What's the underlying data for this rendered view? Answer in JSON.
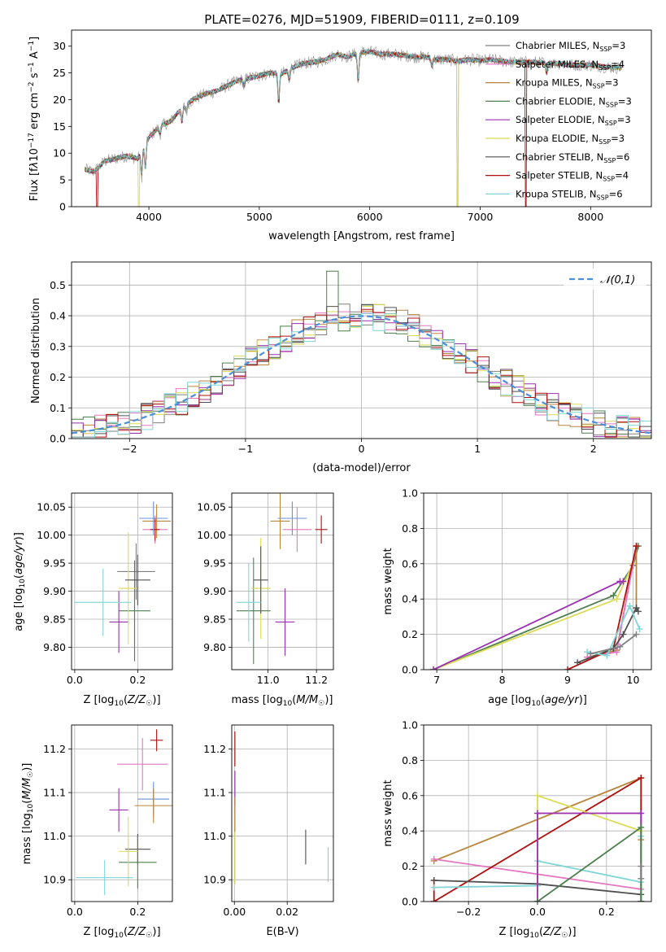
{
  "figure_title": "PLATE=0276, MJD=51909, FIBERID=0111, z=0.109",
  "series_colors": [
    "#808080",
    "#e377c2",
    "#b8863b",
    "#4f7f4f",
    "#9b30b0",
    "#dbdb55",
    "#505050",
    "#b01010",
    "#7fd6d6"
  ],
  "chart_data": [
    {
      "id": "spectrum",
      "type": "line",
      "title": "PLATE=0276, MJD=51909, FIBERID=0111, z=0.109",
      "xlabel": "wavelength [Angstrom, rest frame]",
      "ylabel": "Flux [f_λ 10^-17 erg cm^-2 s^-1 A^-1]",
      "xlim": [
        3300,
        8550
      ],
      "ylim": [
        0,
        33
      ],
      "xticks": [
        4000,
        5000,
        6000,
        7000,
        8000
      ],
      "yticks": [
        0,
        5,
        10,
        15,
        20,
        25,
        30
      ],
      "legend_position": "right",
      "series": [
        {
          "name": "Chabrier MILES, N_SSP=3",
          "color": "#808080"
        },
        {
          "name": "Salpeter MILES, N_SSP=4",
          "color": "#e377c2"
        },
        {
          "name": "Kroupa MILES, N_SSP=3",
          "color": "#b8863b"
        },
        {
          "name": "Chabrier ELODIE, N_SSP=3",
          "color": "#4f7f4f"
        },
        {
          "name": "Salpeter ELODIE, N_SSP=3",
          "color": "#9b30b0"
        },
        {
          "name": "Kroupa ELODIE, N_SSP=3",
          "color": "#dbdb55"
        },
        {
          "name": "Chabrier STELIB, N_SSP=6",
          "color": "#505050"
        },
        {
          "name": "Salpeter STELIB, N_SSP=4",
          "color": "#b01010"
        },
        {
          "name": "Kroupa STELIB, N_SSP=6",
          "color": "#7fd6d6"
        }
      ],
      "continuum": {
        "x": [
          3420,
          3500,
          3600,
          3700,
          3800,
          3900,
          4000,
          4100,
          4200,
          4300,
          4400,
          4500,
          4600,
          4700,
          4800,
          4900,
          5000,
          5100,
          5200,
          5300,
          5400,
          5500,
          5600,
          5700,
          5800,
          5900,
          6000,
          6100,
          6200,
          6300,
          6400,
          6500,
          6600,
          6700,
          6800,
          6900,
          7000,
          7100,
          7200,
          7300,
          7400,
          7500,
          7600,
          7700,
          7800,
          7900,
          8000,
          8100,
          8200,
          8280
        ],
        "y": [
          7.0,
          6.5,
          8.5,
          9.0,
          9.5,
          9.0,
          13.0,
          15.0,
          16.0,
          18.5,
          20.0,
          21.0,
          21.5,
          22.5,
          23.5,
          24.0,
          24.5,
          25.0,
          24.8,
          26.0,
          26.8,
          27.0,
          27.5,
          28.5,
          28.0,
          28.8,
          29.0,
          28.5,
          28.5,
          28.3,
          28.0,
          28.0,
          27.5,
          27.5,
          27.2,
          27.5,
          27.3,
          27.5,
          27.2,
          27.0,
          27.0,
          27.0,
          26.8,
          26.8,
          26.5,
          26.5,
          26.5,
          26.2,
          26.0,
          26.0
        ]
      },
      "absorption": [
        [
          3934,
          5
        ],
        [
          3968,
          5
        ],
        [
          4101,
          1.5
        ],
        [
          4300,
          3
        ],
        [
          4340,
          1.5
        ],
        [
          4861,
          1.5
        ],
        [
          5175,
          6
        ],
        [
          5270,
          2
        ],
        [
          5895,
          6
        ],
        [
          6563,
          1.5
        ],
        [
          7600,
          2
        ]
      ],
      "drops": [
        {
          "series": 7,
          "x_start": 3530,
          "x_end": 3532
        },
        {
          "series": 5,
          "x_start": 3905,
          "x_end": 3910
        },
        {
          "series": 5,
          "x_start": 6790,
          "x_end": 6800
        },
        {
          "series": 2,
          "x_start": 6790,
          "x_end": 6800
        },
        {
          "series": 7,
          "x_start": 7410,
          "x_end": 7418
        }
      ]
    },
    {
      "id": "residual-histogram",
      "type": "line",
      "xlabel": "(data-model)/error",
      "ylabel": "Normed distribution",
      "xlim": [
        -2.5,
        2.5
      ],
      "ylim": [
        0,
        0.575
      ],
      "xticks": [
        -2,
        -1,
        0,
        1,
        2
      ],
      "yticks": [
        0.0,
        0.1,
        0.2,
        0.3,
        0.4,
        0.5
      ],
      "legend": [
        {
          "name": "𝒩(0,1)",
          "style": "dashed",
          "color": "#4a8fd8"
        }
      ],
      "legend_position": "top-right",
      "bin_width": 0.1,
      "reference_curve": "N(0,1)",
      "notable_peak": {
        "series": "Chabrier ELODIE, N_SSP=3",
        "x": -0.25,
        "y": 0.545
      }
    },
    {
      "id": "age-vs-Z",
      "type": "scatter",
      "xlabel": "Z [log10(Z/Z☉)]",
      "ylabel": "age [log10(age/yr)]",
      "xlim": [
        -0.01,
        0.31
      ],
      "ylim": [
        9.76,
        10.075
      ],
      "xticks": [
        0.0,
        0.2
      ],
      "yticks": [
        9.8,
        9.85,
        9.9,
        9.95,
        10.0,
        10.05
      ],
      "points": [
        {
          "x": 0.195,
          "y": 9.935,
          "xerr": 0.06,
          "yerr": 0.05,
          "color": "#808080"
        },
        {
          "x": 0.255,
          "y": 10.01,
          "xerr": 0.04,
          "yerr": 0.025,
          "color": "#e377c2"
        },
        {
          "x": 0.26,
          "y": 10.025,
          "xerr": 0.045,
          "yerr": 0.03,
          "color": "#b8863b"
        },
        {
          "x": 0.19,
          "y": 9.865,
          "xerr": 0.05,
          "yerr": 0.09,
          "color": "#4f7f4f"
        },
        {
          "x": 0.14,
          "y": 9.845,
          "xerr": 0.03,
          "yerr": 0.055,
          "color": "#9b30b0"
        },
        {
          "x": 0.17,
          "y": 9.905,
          "xerr": 0.03,
          "yerr": 0.1,
          "color": "#dbdb55"
        },
        {
          "x": 0.2,
          "y": 9.92,
          "xerr": 0.04,
          "yerr": 0.045,
          "color": "#505050"
        },
        {
          "x": 0.255,
          "y": 10.01,
          "xerr": 0.015,
          "yerr": 0.02,
          "color": "#b01010"
        },
        {
          "x": 0.09,
          "y": 9.88,
          "xerr": 0.09,
          "yerr": 0.06,
          "color": "#7fd6d6"
        },
        {
          "x": 0.25,
          "y": 10.03,
          "xerr": 0.045,
          "yerr": 0.03,
          "color": "#6a8fd8"
        }
      ]
    },
    {
      "id": "age-vs-mass",
      "type": "scatter",
      "xlabel": "mass [log10(M/M☉)]",
      "ylabel": "",
      "xlim": [
        10.85,
        11.27
      ],
      "ylim": [
        9.76,
        10.075
      ],
      "xticks": [
        11.0,
        11.2
      ],
      "yticks": [
        9.8,
        9.85,
        9.9,
        9.95,
        10.0,
        10.05
      ],
      "points": [
        {
          "x": 11.12,
          "y": 10.01,
          "xerr": 0.06,
          "yerr": 0.04,
          "color": "#e377c2"
        },
        {
          "x": 11.05,
          "y": 10.025,
          "xerr": 0.04,
          "yerr": 0.05,
          "color": "#b8863b"
        },
        {
          "x": 11.1,
          "y": 10.03,
          "xerr": 0.06,
          "yerr": 0.03,
          "color": "#6a8fd8"
        },
        {
          "x": 10.94,
          "y": 9.865,
          "xerr": 0.07,
          "yerr": 0.095,
          "color": "#4f7f4f"
        },
        {
          "x": 11.07,
          "y": 9.845,
          "xerr": 0.04,
          "yerr": 0.06,
          "color": "#9b30b0"
        },
        {
          "x": 10.97,
          "y": 9.905,
          "xerr": 0.04,
          "yerr": 0.09,
          "color": "#dbdb55"
        },
        {
          "x": 10.97,
          "y": 9.92,
          "xerr": 0.03,
          "yerr": 0.06,
          "color": "#505050"
        },
        {
          "x": 11.22,
          "y": 10.01,
          "xerr": 0.025,
          "yerr": 0.025,
          "color": "#b01010"
        },
        {
          "x": 10.92,
          "y": 9.88,
          "xerr": 0.05,
          "yerr": 0.07,
          "color": "#7fd6d6"
        }
      ]
    },
    {
      "id": "mass-weight-vs-age",
      "type": "line",
      "xlabel": "age [log10(age/yr)]",
      "ylabel": "mass weight",
      "xlim": [
        6.8,
        10.28
      ],
      "ylim": [
        0,
        1
      ],
      "xticks": [
        7,
        8,
        9,
        10
      ],
      "yticks": [
        0.0,
        0.2,
        0.4,
        0.6,
        0.8,
        1.0
      ],
      "series": [
        {
          "color": "#4f7f4f",
          "x": [
            6.95,
            9.7,
            10.0,
            10.08
          ],
          "y": [
            0.0,
            0.42,
            0.59,
            0.7
          ]
        },
        {
          "color": "#dbdb55",
          "x": [
            6.95,
            9.75,
            10.0,
            10.05
          ],
          "y": [
            0.0,
            0.4,
            0.6,
            0.7
          ]
        },
        {
          "color": "#9b30b0",
          "x": [
            6.95,
            9.8,
            9.85
          ],
          "y": [
            0.0,
            0.5,
            0.5
          ]
        },
        {
          "color": "#b8863b",
          "x": [
            9.3,
            9.75,
            10.05,
            10.05
          ],
          "y": [
            0.07,
            0.11,
            0.7,
            0.35
          ]
        },
        {
          "color": "#e377c2",
          "x": [
            9.3,
            9.75,
            10.05
          ],
          "y": [
            0.07,
            0.1,
            0.7
          ]
        },
        {
          "color": "#b01010",
          "x": [
            9.0,
            9.7,
            10.05
          ],
          "y": [
            0.0,
            0.12,
            0.7
          ]
        },
        {
          "color": "#505050",
          "x": [
            9.15,
            9.7,
            9.85,
            10.05,
            10.08
          ],
          "y": [
            0.04,
            0.12,
            0.2,
            0.35,
            0.33
          ]
        },
        {
          "color": "#7fd6d6",
          "x": [
            9.3,
            9.6,
            9.95,
            10.1
          ],
          "y": [
            0.1,
            0.08,
            0.36,
            0.23
          ]
        },
        {
          "color": "#808080",
          "x": [
            9.35,
            9.8,
            10.05
          ],
          "y": [
            0.09,
            0.13,
            0.2
          ]
        }
      ]
    },
    {
      "id": "mass-vs-Z",
      "type": "scatter",
      "xlabel": "Z [log10(Z/Z☉)]",
      "ylabel": "mass [log10(M/M☉)]",
      "xlim": [
        -0.01,
        0.31
      ],
      "ylim": [
        10.85,
        11.255
      ],
      "xticks": [
        0.0,
        0.2
      ],
      "yticks": [
        10.9,
        11.0,
        11.1,
        11.2
      ],
      "points": [
        {
          "x": 0.26,
          "y": 11.22,
          "xerr": 0.02,
          "yerr": 0.025,
          "color": "#b01010"
        },
        {
          "x": 0.215,
          "y": 11.165,
          "xerr": 0.08,
          "yerr": 0.06,
          "color": "#e377c2"
        },
        {
          "x": 0.25,
          "y": 11.085,
          "xerr": 0.05,
          "yerr": 0.04,
          "color": "#6a8fd8"
        },
        {
          "x": 0.25,
          "y": 11.07,
          "xerr": 0.06,
          "yerr": 0.04,
          "color": "#b8863b"
        },
        {
          "x": 0.14,
          "y": 11.06,
          "xerr": 0.03,
          "yerr": 0.05,
          "color": "#9b30b0"
        },
        {
          "x": 0.2,
          "y": 10.97,
          "xerr": 0.04,
          "yerr": 0.035,
          "color": "#505050"
        },
        {
          "x": 0.2,
          "y": 10.94,
          "xerr": 0.06,
          "yerr": 0.06,
          "color": "#4f7f4f"
        },
        {
          "x": 0.17,
          "y": 10.965,
          "xerr": 0.03,
          "yerr": 0.08,
          "color": "#dbdb55"
        },
        {
          "x": 0.095,
          "y": 10.905,
          "xerr": 0.09,
          "yerr": 0.04,
          "color": "#7fd6d6"
        }
      ]
    },
    {
      "id": "mass-vs-EBV",
      "type": "scatter",
      "xlabel": "E(B-V)",
      "ylabel": "",
      "xlim": [
        -0.001,
        0.0375
      ],
      "ylim": [
        10.85,
        11.255
      ],
      "xticks": [
        0.0,
        0.02
      ],
      "yticks": [
        10.9,
        11.0,
        11.1,
        11.2
      ],
      "points": [
        {
          "x": 0.0002,
          "y": 11.2,
          "xerr": 0,
          "yerr": 0.04,
          "color": "#b01010"
        },
        {
          "x": 0.0002,
          "y": 11.11,
          "xerr": 0,
          "yerr": 0.04,
          "color": "#9b30b0"
        },
        {
          "x": 0.0002,
          "y": 10.97,
          "xerr": 0,
          "yerr": 0.08,
          "color": "#dbdb55"
        },
        {
          "x": 0.0002,
          "y": 11.05,
          "xerr": 0,
          "yerr": 0.04,
          "color": "#b8863b"
        },
        {
          "x": 0.027,
          "y": 10.975,
          "xerr": 0,
          "yerr": 0.04,
          "color": "#505050"
        },
        {
          "x": 0.0355,
          "y": 10.935,
          "xerr": 0,
          "yerr": 0.04,
          "color": "#7fd6d6"
        }
      ]
    },
    {
      "id": "mass-weight-vs-Z",
      "type": "line",
      "xlabel": "Z [log10(Z/Z☉)]",
      "ylabel": "mass weight",
      "xlim": [
        -0.33,
        0.33
      ],
      "ylim": [
        0,
        1
      ],
      "xticks": [
        -0.2,
        0.0,
        0.2
      ],
      "yticks": [
        0.0,
        0.2,
        0.4,
        0.6,
        0.8,
        1.0
      ],
      "series": [
        {
          "color": "#b8863b",
          "x": [
            -0.3,
            0.3,
            0.3
          ],
          "y": [
            0.23,
            0.7,
            0.35
          ]
        },
        {
          "color": "#e377c2",
          "x": [
            -0.3,
            0.3
          ],
          "y": [
            0.24,
            0.07
          ]
        },
        {
          "color": "#b01010",
          "x": [
            -0.3,
            -0.3,
            0.3,
            0.3
          ],
          "y": [
            0.12,
            0.0,
            0.7,
            0.0
          ]
        },
        {
          "color": "#505050",
          "x": [
            -0.3,
            0.0,
            0.3
          ],
          "y": [
            0.12,
            0.1,
            0.04
          ]
        },
        {
          "color": "#7fd6d6",
          "x": [
            -0.3,
            0.0,
            0.0,
            0.3,
            0.3
          ],
          "y": [
            0.08,
            0.09,
            0.23,
            0.11,
            0.37
          ]
        },
        {
          "color": "#dbdb55",
          "x": [
            0.0,
            0.0,
            0.3,
            0.3
          ],
          "y": [
            0.0,
            0.6,
            0.4,
            0.0
          ]
        },
        {
          "color": "#9b30b0",
          "x": [
            0.0,
            0.0,
            0.3,
            0.3
          ],
          "y": [
            0.0,
            0.5,
            0.5,
            0.0
          ]
        },
        {
          "color": "#4f7f4f",
          "x": [
            0.0,
            0.3,
            0.3
          ],
          "y": [
            0.0,
            0.42,
            0.0
          ]
        },
        {
          "color": "#808080",
          "x": [
            0.3,
            0.3
          ],
          "y": [
            0.2,
            0.13
          ]
        }
      ]
    }
  ]
}
